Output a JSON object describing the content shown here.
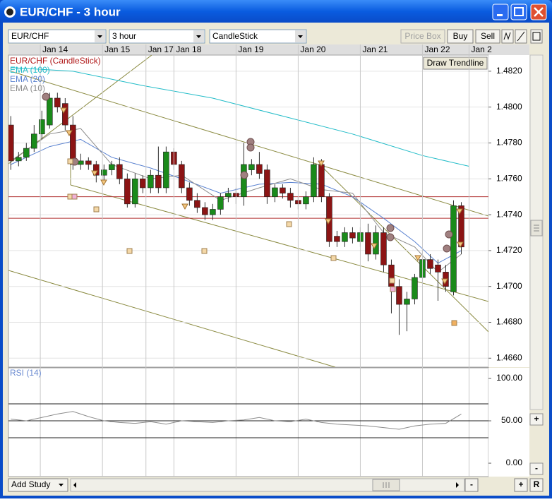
{
  "window": {
    "title": "EUR/CHF - 3 hour"
  },
  "toolbar": {
    "symbol": "EUR/CHF",
    "period": "3 hour",
    "style": "CandleStick",
    "price_box": "Price Box",
    "buy": "Buy",
    "sell": "Sell"
  },
  "overlay": {
    "draw_trendline": "Draw Trendline"
  },
  "footer": {
    "add_study": "Add Study",
    "zoom_out": "-",
    "zoom_in": "+",
    "reset": "R",
    "rsi_zoom_in": "+",
    "rsi_zoom_out": "-"
  },
  "chart_data": [
    {
      "type": "candlestick",
      "title": "EUR/CHF (CandleStick)",
      "title_color": "#b01818",
      "xlim": [
        -0.3,
        61.5
      ],
      "xticks": [
        {
          "value": 3.8,
          "label": "Jan 14"
        },
        {
          "value": 11.8,
          "label": "Jan 15"
        },
        {
          "value": 17.4,
          "label": "Jan 17"
        },
        {
          "value": 21,
          "label": "Jan 18"
        },
        {
          "value": 29,
          "label": "Jan 19"
        },
        {
          "value": 37,
          "label": "Jan 20"
        },
        {
          "value": 45,
          "label": "Jan 21"
        },
        {
          "value": 53,
          "label": "Jan 22"
        },
        {
          "value": 59,
          "label": "Jan 2"
        }
      ],
      "ylim": [
        1.4655,
        1.4829
      ],
      "yticks": [
        {
          "value": 1.466,
          "label": "1.4660"
        },
        {
          "value": 1.468,
          "label": "1.4680"
        },
        {
          "value": 1.47,
          "label": "1.4700"
        },
        {
          "value": 1.472,
          "label": "1.4720"
        },
        {
          "value": 1.474,
          "label": "1.4740"
        },
        {
          "value": 1.476,
          "label": "1.4760"
        },
        {
          "value": 1.478,
          "label": "1.4780"
        },
        {
          "value": 1.48,
          "label": "1.4800"
        },
        {
          "value": 1.482,
          "label": "1.4820"
        }
      ],
      "grid": true,
      "up_color": "#1a8a1a",
      "down_color": "#8c1414",
      "hlines": [
        1.475,
        1.4738
      ],
      "hline_color": "#b03030",
      "open": [
        1.479,
        1.477,
        1.4772,
        1.4777,
        1.4785,
        1.479,
        1.4805,
        1.4802,
        1.479,
        1.4768,
        1.477,
        1.4768,
        1.4762,
        1.4765,
        1.4768,
        1.476,
        1.4746,
        1.476,
        1.4755,
        1.4762,
        1.4755,
        1.4775,
        1.4768,
        1.4755,
        1.4748,
        1.4744,
        1.474,
        1.4743,
        1.475,
        1.4752,
        1.475,
        1.4765,
        1.4768,
        1.4765,
        1.475,
        1.4755,
        1.4752,
        1.4748,
        1.4746,
        1.475,
        1.4768,
        1.475,
        1.4728,
        1.4725,
        1.473,
        1.4725,
        1.473,
        1.4718,
        1.473,
        1.4712,
        1.47,
        1.469,
        1.4693,
        1.4705,
        1.4715,
        1.4712,
        1.4708,
        1.4697,
        1.4745
      ],
      "high": [
        1.4795,
        1.4775,
        1.478,
        1.479,
        1.4798,
        1.4808,
        1.4808,
        1.4805,
        1.4795,
        1.4774,
        1.4772,
        1.477,
        1.4768,
        1.477,
        1.4772,
        1.4763,
        1.4763,
        1.4762,
        1.4765,
        1.4778,
        1.4778,
        1.4777,
        1.477,
        1.4758,
        1.4752,
        1.4747,
        1.4746,
        1.4752,
        1.4755,
        1.4755,
        1.478,
        1.4771,
        1.4775,
        1.4768,
        1.4757,
        1.4757,
        1.4755,
        1.475,
        1.4753,
        1.4772,
        1.4771,
        1.4752,
        1.4731,
        1.4733,
        1.4733,
        1.4733,
        1.4735,
        1.4734,
        1.4733,
        1.4715,
        1.4704,
        1.4697,
        1.4707,
        1.472,
        1.4718,
        1.4715,
        1.4712,
        1.4748,
        1.4747
      ],
      "low": [
        1.4765,
        1.4767,
        1.477,
        1.4775,
        1.4782,
        1.4788,
        1.4797,
        1.4787,
        1.4765,
        1.4765,
        1.4765,
        1.4758,
        1.4759,
        1.4762,
        1.4757,
        1.4744,
        1.4744,
        1.4752,
        1.4752,
        1.4752,
        1.4752,
        1.4765,
        1.4752,
        1.4745,
        1.4741,
        1.4737,
        1.4737,
        1.474,
        1.4747,
        1.4746,
        1.4745,
        1.4762,
        1.476,
        1.4746,
        1.4747,
        1.4749,
        1.4744,
        1.4743,
        1.4743,
        1.4747,
        1.4747,
        1.4722,
        1.4722,
        1.4722,
        1.4724,
        1.4722,
        1.4714,
        1.4715,
        1.4708,
        1.4685,
        1.4673,
        1.4675,
        1.469,
        1.4702,
        1.4707,
        1.4692,
        1.4697,
        1.4695,
        1.4718
      ],
      "close": [
        1.477,
        1.4772,
        1.4777,
        1.4785,
        1.4793,
        1.4805,
        1.48,
        1.479,
        1.4768,
        1.477,
        1.4768,
        1.4762,
        1.4765,
        1.4768,
        1.476,
        1.4746,
        1.476,
        1.4755,
        1.4762,
        1.4755,
        1.4775,
        1.4768,
        1.4755,
        1.4748,
        1.4744,
        1.474,
        1.4743,
        1.475,
        1.4752,
        1.475,
        1.4768,
        1.4768,
        1.4763,
        1.475,
        1.4755,
        1.4752,
        1.4748,
        1.4746,
        1.475,
        1.4768,
        1.475,
        1.4725,
        1.4725,
        1.473,
        1.4727,
        1.473,
        1.4718,
        1.473,
        1.4712,
        1.47,
        1.469,
        1.4693,
        1.4705,
        1.4715,
        1.471,
        1.4708,
        1.47,
        1.4745,
        1.4722
      ],
      "series": [
        {
          "name": "EMA (100)",
          "color": "#22bcc8",
          "x": [
            0,
            8,
            17,
            26,
            35,
            44,
            53,
            59
          ],
          "values": [
            1.4822,
            1.482,
            1.4812,
            1.4805,
            1.4795,
            1.4785,
            1.4773,
            1.4767
          ]
        },
        {
          "name": "EMA (20)",
          "color": "#5a82d0",
          "x": [
            0,
            5,
            9,
            13,
            18,
            22,
            27,
            32,
            36,
            40,
            44,
            48,
            52,
            55,
            58
          ],
          "values": [
            1.4768,
            1.4778,
            1.4782,
            1.4772,
            1.4766,
            1.476,
            1.4752,
            1.4757,
            1.4758,
            1.4757,
            1.475,
            1.4738,
            1.4725,
            1.4713,
            1.472
          ]
        },
        {
          "name": "EMA (10)",
          "color": "#8c8c8c",
          "x": [
            0,
            5,
            9,
            13,
            18,
            22,
            27,
            32,
            36,
            40,
            44,
            48,
            52,
            55,
            58
          ],
          "values": [
            1.477,
            1.4785,
            1.4788,
            1.4768,
            1.476,
            1.4762,
            1.4748,
            1.4755,
            1.476,
            1.4754,
            1.4752,
            1.473,
            1.4722,
            1.4708,
            1.4718
          ]
        }
      ]
    },
    {
      "type": "line",
      "title": "RSI (14)",
      "title_color": "#6a8ad0",
      "xlim": [
        -0.3,
        61.5
      ],
      "ylim": [
        -15.8,
        112.5
      ],
      "yticks": [
        {
          "value": 0,
          "label": "0.00"
        },
        {
          "value": 50,
          "label": "50.00"
        },
        {
          "value": 100,
          "label": "100.00"
        }
      ],
      "levels": [
        30,
        50,
        70
      ],
      "series": [
        {
          "color": "#8c8c8c",
          "x": [
            0,
            2,
            4,
            6,
            8,
            10,
            12,
            14,
            16,
            18,
            20,
            22,
            24,
            26,
            28,
            30,
            32,
            34,
            36,
            38,
            40,
            42,
            44,
            46,
            48,
            50,
            52,
            54,
            56,
            58
          ],
          "values": [
            52,
            50,
            54,
            58,
            61,
            55,
            50,
            48,
            47,
            49,
            46,
            50,
            49,
            48,
            50,
            51,
            54,
            50,
            49,
            52,
            48,
            46,
            45,
            44,
            42,
            40,
            44,
            46,
            47,
            58
          ]
        }
      ]
    }
  ]
}
